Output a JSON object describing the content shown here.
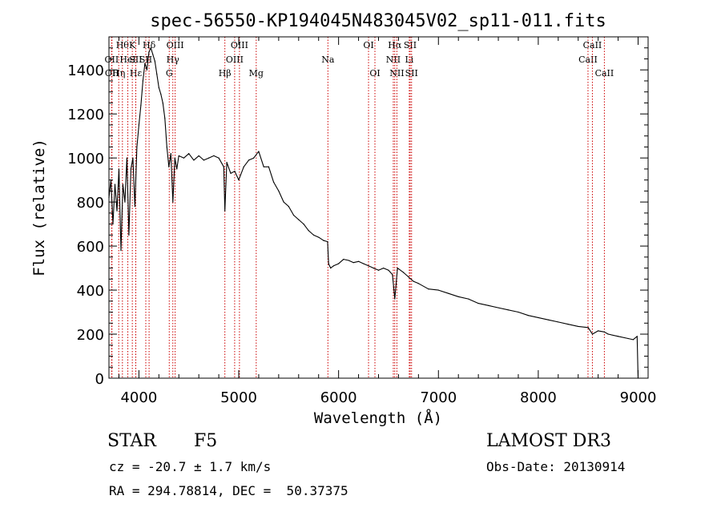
{
  "chart_data": {
    "type": "line",
    "title": "spec-56550-KP194045N483045V02_sp11-011.fits",
    "xlabel": "Wavelength (Å)",
    "ylabel": "Flux (relative)",
    "xlim": [
      3700,
      9100
    ],
    "ylim": [
      0,
      1550
    ],
    "xticks": [
      4000,
      5000,
      6000,
      7000,
      8000,
      9000
    ],
    "yticks": [
      0,
      200,
      400,
      600,
      800,
      1000,
      1200,
      1400
    ],
    "series": [
      {
        "name": "flux",
        "x": [
          3700,
          3720,
          3740,
          3760,
          3780,
          3800,
          3820,
          3840,
          3860,
          3880,
          3900,
          3920,
          3940,
          3960,
          3980,
          4000,
          4020,
          4040,
          4060,
          4080,
          4100,
          4120,
          4140,
          4160,
          4180,
          4200,
          4220,
          4240,
          4260,
          4280,
          4300,
          4320,
          4340,
          4360,
          4380,
          4400,
          4450,
          4500,
          4550,
          4600,
          4650,
          4700,
          4750,
          4800,
          4850,
          4861,
          4880,
          4920,
          4960,
          5000,
          5050,
          5100,
          5150,
          5200,
          5250,
          5300,
          5350,
          5400,
          5450,
          5500,
          5550,
          5600,
          5650,
          5700,
          5750,
          5800,
          5850,
          5890,
          5900,
          5920,
          5950,
          6000,
          6050,
          6100,
          6150,
          6200,
          6250,
          6300,
          6350,
          6400,
          6450,
          6500,
          6540,
          6563,
          6590,
          6650,
          6700,
          6750,
          6800,
          6900,
          7000,
          7100,
          7200,
          7300,
          7400,
          7500,
          7600,
          7700,
          7800,
          7900,
          8000,
          8100,
          8200,
          8300,
          8400,
          8500,
          8542,
          8600,
          8662,
          8700,
          8800,
          8900,
          8950,
          8990,
          9000
        ],
        "values": [
          820,
          900,
          700,
          880,
          760,
          950,
          580,
          880,
          800,
          1000,
          650,
          950,
          1000,
          780,
          1050,
          1150,
          1240,
          1350,
          1430,
          1400,
          1480,
          1500,
          1470,
          1440,
          1380,
          1320,
          1290,
          1250,
          1180,
          1050,
          960,
          1020,
          800,
          1000,
          950,
          1010,
          1000,
          1020,
          990,
          1010,
          990,
          1000,
          1010,
          1000,
          960,
          760,
          980,
          930,
          940,
          900,
          960,
          990,
          1000,
          1030,
          960,
          960,
          890,
          850,
          800,
          780,
          740,
          720,
          700,
          670,
          650,
          640,
          625,
          620,
          520,
          500,
          510,
          520,
          540,
          535,
          525,
          530,
          520,
          510,
          500,
          490,
          500,
          490,
          470,
          360,
          500,
          480,
          460,
          440,
          430,
          405,
          400,
          385,
          370,
          360,
          340,
          330,
          320,
          310,
          300,
          285,
          275,
          265,
          255,
          245,
          235,
          230,
          200,
          215,
          210,
          200,
          190,
          180,
          175,
          190,
          0
        ]
      }
    ],
    "lines": [
      {
        "x": 3727,
        "labels": [
          "OII"
        ],
        "row": 2
      },
      {
        "x": 3730,
        "labels": [
          "OII"
        ],
        "row": 3
      },
      {
        "x": 3798,
        "labels": [
          "Hη"
        ],
        "row": 3
      },
      {
        "x": 3835,
        "labels": [
          "Hθ"
        ],
        "row": 1
      },
      {
        "x": 3889,
        "labels": [
          "HeI"
        ],
        "row": 2
      },
      {
        "x": 3934,
        "labels": [
          "K"
        ],
        "row": 1
      },
      {
        "x": 3969,
        "labels": [
          "Hε"
        ],
        "row": 3
      },
      {
        "x": 3968,
        "labels": [
          "SII"
        ],
        "row": 2
      },
      {
        "x": 4102,
        "labels": [
          "Hδ"
        ],
        "row": 1
      },
      {
        "x": 4069,
        "labels": [
          "SII"
        ],
        "row": 2
      },
      {
        "x": 4304,
        "labels": [
          "G"
        ],
        "row": 3
      },
      {
        "x": 4340,
        "labels": [
          "Hγ"
        ],
        "row": 2
      },
      {
        "x": 4363,
        "labels": [
          "OIII"
        ],
        "row": 1
      },
      {
        "x": 4861,
        "labels": [
          "Hβ"
        ],
        "row": 3
      },
      {
        "x": 4959,
        "labels": [
          "OIII"
        ],
        "row": 2
      },
      {
        "x": 5007,
        "labels": [
          "OIII"
        ],
        "row": 1
      },
      {
        "x": 5175,
        "labels": [
          "Mg"
        ],
        "row": 3
      },
      {
        "x": 5893,
        "labels": [
          "Na"
        ],
        "row": 2
      },
      {
        "x": 6300,
        "labels": [
          "OI"
        ],
        "row": 1
      },
      {
        "x": 6364,
        "labels": [
          "OI"
        ],
        "row": 3
      },
      {
        "x": 6548,
        "labels": [
          "NII"
        ],
        "row": 2
      },
      {
        "x": 6563,
        "labels": [
          "Hα"
        ],
        "row": 1
      },
      {
        "x": 6584,
        "labels": [
          "NII"
        ],
        "row": 3
      },
      {
        "x": 6708,
        "labels": [
          "Li"
        ],
        "row": 2
      },
      {
        "x": 6717,
        "labels": [
          "SII"
        ],
        "row": 1
      },
      {
        "x": 6731,
        "labels": [
          "SII"
        ],
        "row": 3
      },
      {
        "x": 8498,
        "labels": [
          "CaII"
        ],
        "row": 2
      },
      {
        "x": 8542,
        "labels": [
          "CaII"
        ],
        "row": 1
      },
      {
        "x": 8662,
        "labels": [
          "CaII"
        ],
        "row": 3
      }
    ]
  },
  "info": {
    "class": "STAR",
    "subclass": "F5",
    "survey": "LAMOST DR3",
    "cz": "cz = -20.7 ± 1.7 km/s",
    "obs_date": "Obs-Date: 20130914",
    "coords": "RA = 294.78814, DEC =  50.37375"
  }
}
